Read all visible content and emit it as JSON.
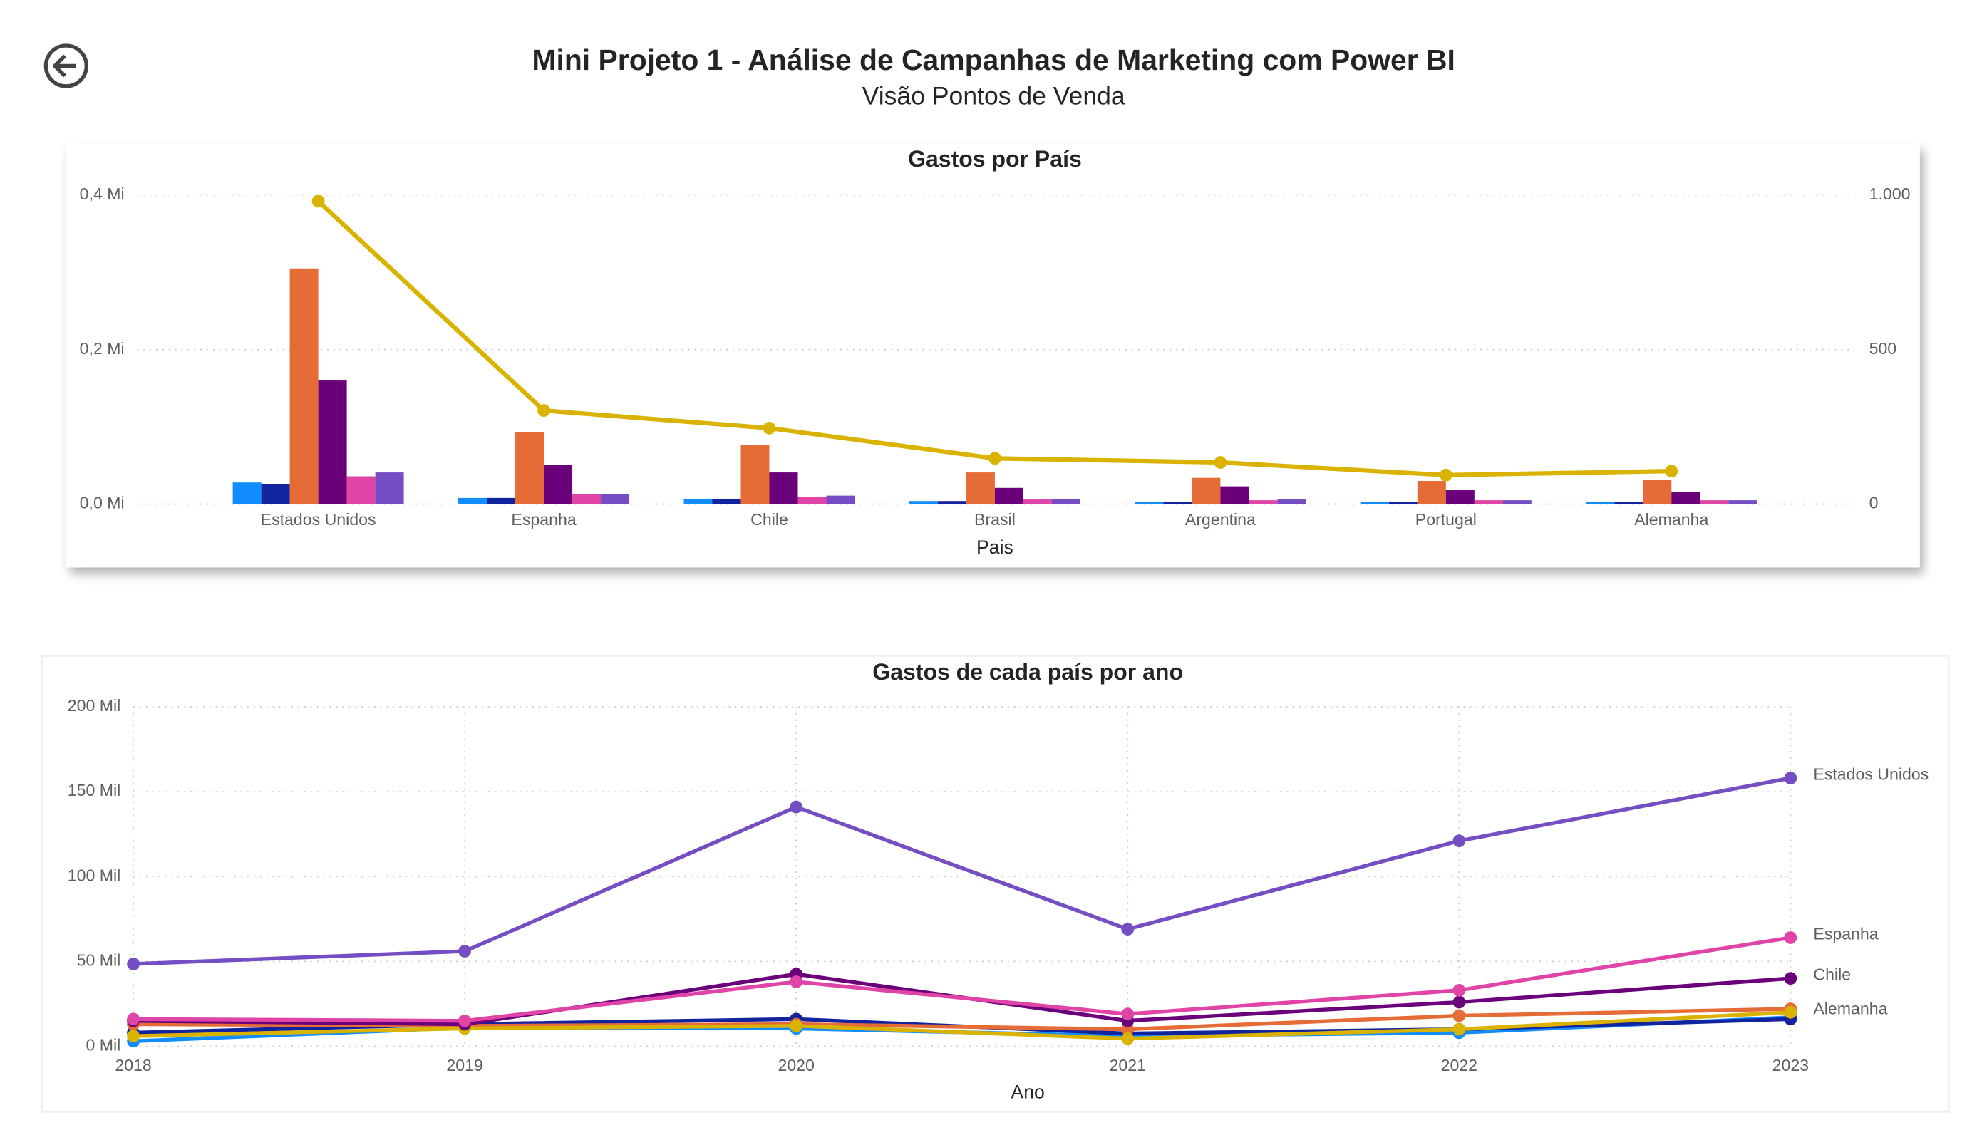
{
  "header": {
    "title": "Mini Projeto 1 - Análise de Campanhas de Marketing com Power BI",
    "subtitle": "Visão Pontos de Venda"
  },
  "chart_data": [
    {
      "type": "bar",
      "title": "Gastos por País",
      "x_label": "Pais",
      "categories": [
        "Estados Unidos",
        "Espanha",
        "Chile",
        "Brasil",
        "Argentina",
        "Portugal",
        "Alemanha"
      ],
      "ylim": [
        0,
        0.4
      ],
      "yticks": [
        {
          "value": 0,
          "label": "0,0 Mi"
        },
        {
          "value": 0.2,
          "label": "0,2 Mi"
        },
        {
          "value": 0.4,
          "label": "0,4 Mi"
        }
      ],
      "y2lim": [
        0,
        1000
      ],
      "y2ticks": [
        0,
        500,
        {
          "value": 1000,
          "label": "1.000"
        }
      ],
      "grid": true,
      "series": [
        {
          "color": "#118DFF",
          "values": [
            0.028,
            0.008,
            0.007,
            0.004,
            0.003,
            0.003,
            0.003
          ]
        },
        {
          "color": "#12239E",
          "values": [
            0.026,
            0.008,
            0.007,
            0.004,
            0.003,
            0.003,
            0.003
          ]
        },
        {
          "color": "#E66C37",
          "values": [
            0.305,
            0.093,
            0.077,
            0.041,
            0.034,
            0.03,
            0.031
          ]
        },
        {
          "color": "#6B007B",
          "values": [
            0.16,
            0.051,
            0.041,
            0.021,
            0.023,
            0.018,
            0.016
          ]
        },
        {
          "color": "#E044A7",
          "values": [
            0.036,
            0.013,
            0.009,
            0.006,
            0.005,
            0.005,
            0.005
          ]
        },
        {
          "color": "#744EC2",
          "values": [
            0.041,
            0.013,
            0.011,
            0.007,
            0.006,
            0.005,
            0.005
          ]
        },
        {
          "type": "line",
          "axis": "y2",
          "color": "#D9B300",
          "values": [
            980,
            303,
            246,
            148,
            135,
            94,
            107
          ]
        }
      ]
    },
    {
      "type": "line",
      "title": "Gastos de cada país por ano",
      "x_label": "Ano",
      "x": [
        2018,
        2019,
        2020,
        2021,
        2022,
        2023
      ],
      "xlim": [
        2018,
        2023
      ],
      "xticks": [
        2018,
        2019,
        2020,
        2021,
        2022,
        2023
      ],
      "ylim": [
        0,
        200
      ],
      "yticks": [
        {
          "value": 0,
          "label": "0 Mil"
        },
        {
          "value": 50,
          "label": "50 Mil"
        },
        {
          "value": 100,
          "label": "100 Mil"
        },
        {
          "value": 150,
          "label": "150 Mil"
        },
        {
          "value": 200,
          "label": "200 Mil"
        }
      ],
      "grid": true,
      "series": [
        {
          "color": "#118DFF",
          "values": [
            3,
            11,
            10.5,
            6,
            8,
            17
          ]
        },
        {
          "color": "#12239E",
          "values": [
            8,
            13,
            16,
            7.5,
            10,
            16
          ]
        },
        {
          "color": "#E66C37",
          "values": [
            13,
            12,
            13,
            10,
            18,
            22
          ]
        },
        {
          "name": "Alemanha",
          "color": "#D9B300",
          "values": [
            6,
            10.5,
            12,
            4.5,
            10,
            20
          ]
        },
        {
          "name": "Chile",
          "color": "#6B007B",
          "values": [
            15,
            13,
            42.5,
            15,
            26,
            40
          ]
        },
        {
          "name": "Espanha",
          "color": "#E044A7",
          "values": [
            16,
            15,
            38,
            19,
            33,
            64
          ]
        },
        {
          "name": "Estados Unidos",
          "color": "#744EC2",
          "values": [
            48.5,
            56,
            141,
            69,
            121,
            158
          ]
        }
      ]
    }
  ]
}
